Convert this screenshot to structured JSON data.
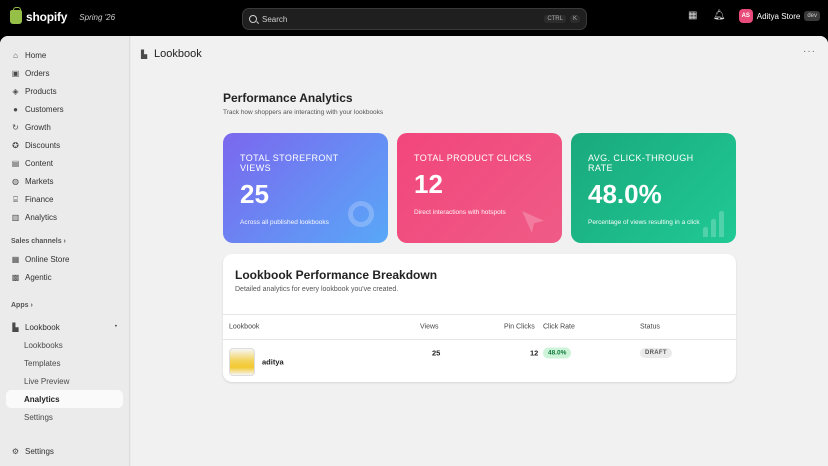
{
  "topbar": {
    "brand": "shopify",
    "edition": "Spring '26",
    "search_placeholder": "Search",
    "shortcut_keys": [
      "CTRL",
      "K"
    ],
    "store_initials": "AS",
    "store_name": "Aditya Store",
    "store_tag": "dev",
    "icons": [
      "calendar-icon",
      "bell-icon"
    ]
  },
  "sidebar": {
    "items": [
      {
        "label": "Home",
        "icon": "home-icon"
      },
      {
        "label": "Orders",
        "icon": "orders-icon"
      },
      {
        "label": "Products",
        "icon": "tag-icon"
      },
      {
        "label": "Customers",
        "icon": "person-icon"
      },
      {
        "label": "Growth",
        "icon": "growth-icon"
      },
      {
        "label": "Discounts",
        "icon": "discount-icon"
      },
      {
        "label": "Content",
        "icon": "content-icon"
      },
      {
        "label": "Markets",
        "icon": "globe-icon"
      },
      {
        "label": "Finance",
        "icon": "bank-icon"
      },
      {
        "label": "Analytics",
        "icon": "bar-chart-icon"
      }
    ],
    "sales_channels_label": "Sales channels",
    "channels": [
      {
        "label": "Online Store",
        "icon": "store-icon"
      },
      {
        "label": "Agentic",
        "icon": "agent-icon"
      }
    ],
    "apps_label": "Apps",
    "app": {
      "label": "Lookbook",
      "icon": "book-icon"
    },
    "app_subitems": [
      "Lookbooks",
      "Templates",
      "Live Preview",
      "Analytics",
      "Settings"
    ],
    "settings_label": "Settings"
  },
  "page": {
    "title": "Lookbook",
    "section_title": "Performance Analytics",
    "section_subtitle": "Track how shoppers are interacting with your lookbooks"
  },
  "cards": [
    {
      "label": "TOTAL STOREFRONT VIEWS",
      "value": "25",
      "desc": "Across all published lookbooks"
    },
    {
      "label": "TOTAL PRODUCT CLICKS",
      "value": "12",
      "desc": "Direct interactions with hotspots"
    },
    {
      "label": "AVG. CLICK-THROUGH RATE",
      "value": "48.0%",
      "desc": "Percentage of views resulting in a click"
    }
  ],
  "breakdown": {
    "title": "Lookbook Performance Breakdown",
    "subtitle": "Detailed analytics for every lookbook you've created.",
    "columns": [
      "Lookbook",
      "Views",
      "Pin Clicks",
      "Click Rate",
      "Status"
    ],
    "rows": [
      {
        "name": "aditya",
        "views": "25",
        "pin_clicks": "12",
        "click_rate": "48.0%",
        "status": "DRAFT"
      }
    ]
  },
  "colors": {
    "views_gradient": [
      "#7b67ee",
      "#58a8f8"
    ],
    "clicks_gradient": [
      "#f2467c",
      "#ef5b86"
    ],
    "ctr_gradient": [
      "#1aa97c",
      "#20c994"
    ],
    "topbar": "#000000"
  }
}
